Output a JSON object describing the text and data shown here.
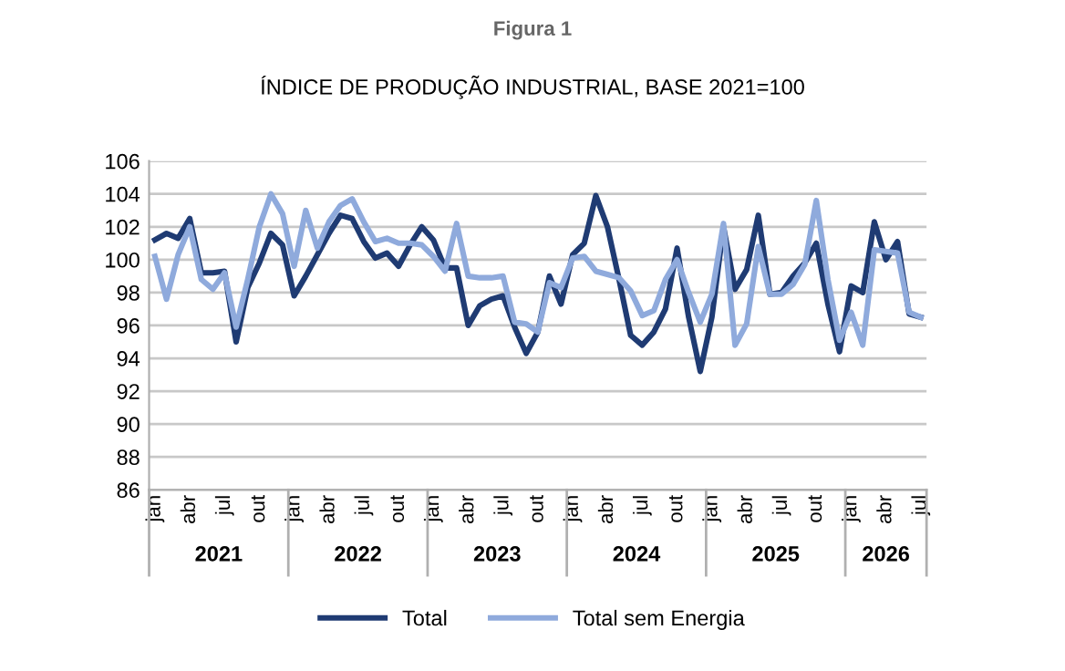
{
  "chart_data": {
    "type": "line",
    "title": "Figura 1",
    "subtitle": "ÍNDICE DE PRODUÇÃO INDUSTRIAL, BASE 2021=100",
    "categories": [
      "jan",
      null,
      null,
      "abr",
      null,
      null,
      "jul",
      null,
      null,
      "out",
      null,
      null,
      "jan",
      null,
      null,
      "abr",
      null,
      null,
      "jul",
      null,
      null,
      "out",
      null,
      null,
      "jan",
      null,
      null,
      "abr",
      null,
      null,
      "jul",
      null,
      null,
      "out",
      null,
      null,
      "jan",
      null,
      null,
      "abr",
      null,
      null,
      "jul",
      null,
      null,
      "out",
      null,
      null,
      "jan",
      null,
      null,
      "abr",
      null,
      null,
      "jul",
      null,
      null,
      "out",
      null,
      null,
      "jan",
      null,
      null,
      "abr",
      null,
      null,
      "jul"
    ],
    "annotations": [
      "2021",
      "2022",
      "2023",
      "2024",
      "2025",
      "2026"
    ],
    "series": [
      {
        "name": "Total",
        "color": "#1f3b73",
        "values": [
          101.2,
          101.6,
          101.3,
          102.5,
          99.2,
          99.2,
          99.3,
          95.0,
          98.3,
          99.8,
          101.6,
          100.9,
          97.8,
          99.0,
          100.3,
          101.6,
          102.7,
          102.5,
          101.1,
          100.1,
          100.4,
          99.6,
          100.9,
          102.0,
          101.2,
          99.5,
          99.5,
          96.0,
          97.2,
          97.6,
          97.8,
          95.9,
          94.3,
          95.6,
          99.0,
          97.3,
          100.3,
          101.0,
          103.9,
          102.0,
          98.8,
          95.4,
          94.8,
          95.6,
          97.0,
          100.7,
          96.5,
          93.2,
          96.5,
          102.0,
          98.2,
          99.4,
          102.7,
          97.9,
          98.0,
          99.0,
          99.8,
          101.0,
          97.3,
          94.4,
          98.4,
          98.0,
          102.3,
          100.0,
          101.1,
          96.7,
          96.5
        ]
      },
      {
        "name": "Total sem Energia",
        "color": "#8faadc",
        "values": [
          100.2,
          97.6,
          100.3,
          102.0,
          98.8,
          98.2,
          99.2,
          95.9,
          98.8,
          102.0,
          104.0,
          102.8,
          99.6,
          103.0,
          100.7,
          102.3,
          103.3,
          103.7,
          102.3,
          101.1,
          101.3,
          101.0,
          101.0,
          100.9,
          100.2,
          99.3,
          102.2,
          99.0,
          98.9,
          98.9,
          99.0,
          96.2,
          96.1,
          95.6,
          98.6,
          98.3,
          100.1,
          100.2,
          99.3,
          99.1,
          98.9,
          98.1,
          96.6,
          96.9,
          98.8,
          100.0,
          98.0,
          96.2,
          97.9,
          102.2,
          94.8,
          96.1,
          100.8,
          97.9,
          97.9,
          98.5,
          99.7,
          103.6,
          98.8,
          95.1,
          96.8,
          94.8,
          100.6,
          100.5,
          100.4,
          96.8,
          96.5
        ]
      }
    ],
    "ylim": [
      86,
      106
    ],
    "yticks": [
      86,
      88,
      90,
      92,
      94,
      96,
      98,
      100,
      102,
      104,
      106
    ],
    "grid": "y",
    "legend": "bottom",
    "marker": "none",
    "line_style": "solid"
  }
}
